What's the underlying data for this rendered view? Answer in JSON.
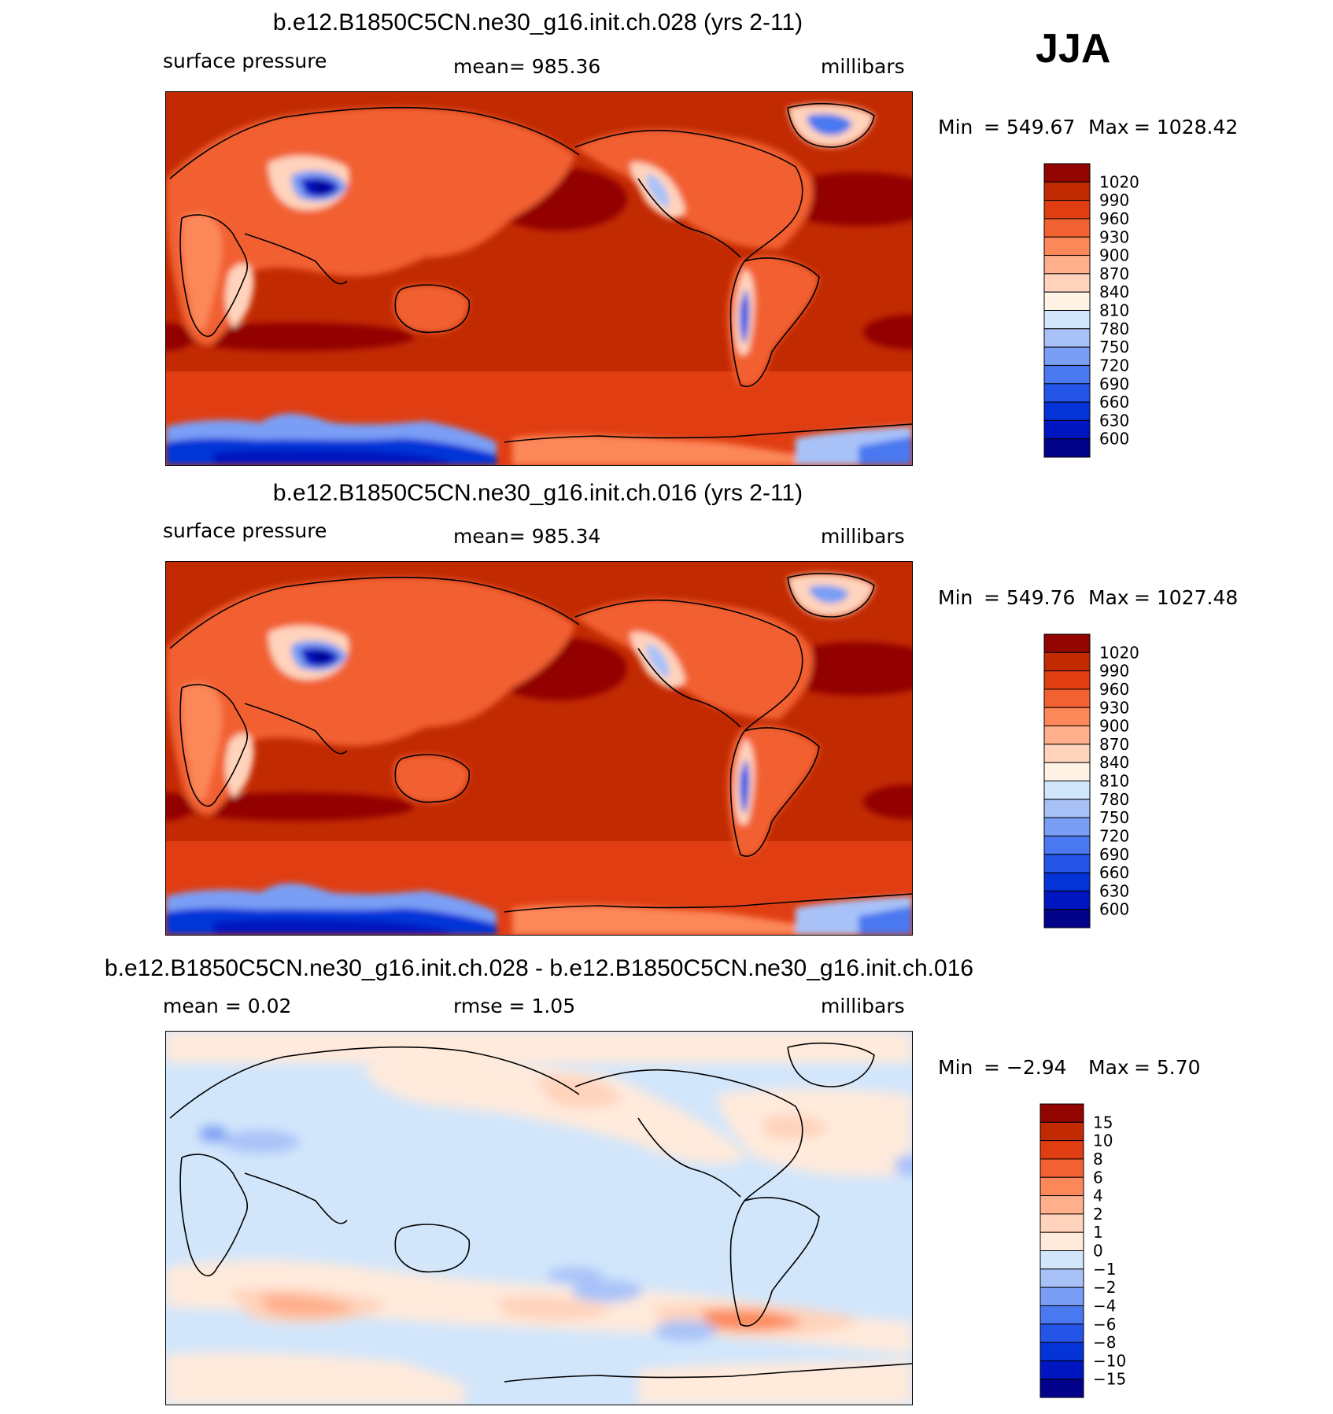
{
  "season": "JJA",
  "colors": {
    "pressure": [
      "#03028a",
      "#0016c0",
      "#0434d8",
      "#2454e8",
      "#4a78f0",
      "#7a9ef5",
      "#a8c2f8",
      "#d2e6fb",
      "#fff3e6",
      "#ffd3bc",
      "#ffaf8b",
      "#fc8759",
      "#f26131",
      "#e03e12",
      "#c22a02",
      "#920500"
    ],
    "diff": [
      "#03028a",
      "#0016c0",
      "#0434d8",
      "#2454e8",
      "#4a78f0",
      "#7a9ef5",
      "#a8c2f8",
      "#d2e6fb",
      "#ffeadb",
      "#ffd3bc",
      "#ffaf8b",
      "#fc8759",
      "#f26131",
      "#e03e12",
      "#c22a02",
      "#920500"
    ]
  },
  "panels": [
    {
      "title": "b.e12.B1850C5CN.ne30_g16.init.ch.028 (yrs 2-11)",
      "left_label": "surface pressure",
      "center_label": "mean=  985.36",
      "right_label": "millibars",
      "min_label": "Min",
      "min_value": "=  549.67",
      "max_label": "Max",
      "max_value": "=  1028.42"
    },
    {
      "title": "b.e12.B1850C5CN.ne30_g16.init.ch.016 (yrs 2-11)",
      "left_label": "surface pressure",
      "center_label": "mean=  985.34",
      "right_label": "millibars",
      "min_label": "Min",
      "min_value": "=  549.76",
      "max_label": "Max",
      "max_value": "=  1027.48"
    },
    {
      "title": "b.e12.B1850C5CN.ne30_g16.init.ch.028 - b.e12.B1850C5CN.ne30_g16.init.ch.016",
      "left_label": "mean  =     0.02",
      "center_label": "rmse  =     1.05",
      "right_label": "millibars",
      "min_label": "Min",
      "min_value": "=    −2.94",
      "max_label": "Max",
      "max_value": "=     5.70"
    }
  ],
  "chart_data": [
    {
      "type": "heatmap",
      "title": "b.e12.B1850C5CN.ne30_g16.init.ch.028 (yrs 2-11)",
      "variable": "surface pressure",
      "units": "millibars",
      "season": "JJA",
      "mean": 985.36,
      "min": 549.67,
      "max": 1028.42,
      "colorbar_levels": [
        "1020",
        "990",
        "960",
        "930",
        "900",
        "870",
        "840",
        "810",
        "780",
        "750",
        "720",
        "690",
        "660",
        "630",
        "600"
      ],
      "projection": "global cylindrical equidistant, Pacific-centered"
    },
    {
      "type": "heatmap",
      "title": "b.e12.B1850C5CN.ne30_g16.init.ch.016 (yrs 2-11)",
      "variable": "surface pressure",
      "units": "millibars",
      "season": "JJA",
      "mean": 985.34,
      "min": 549.76,
      "max": 1027.48,
      "colorbar_levels": [
        "1020",
        "990",
        "960",
        "930",
        "900",
        "870",
        "840",
        "810",
        "780",
        "750",
        "720",
        "690",
        "660",
        "630",
        "600"
      ],
      "projection": "global cylindrical equidistant, Pacific-centered"
    },
    {
      "type": "heatmap",
      "title": "b.e12.B1850C5CN.ne30_g16.init.ch.028 - b.e12.B1850C5CN.ne30_g16.init.ch.016",
      "variable": "surface pressure difference",
      "units": "millibars",
      "season": "JJA",
      "mean": 0.02,
      "rmse": 1.05,
      "min": -2.94,
      "max": 5.7,
      "colorbar_levels": [
        "15",
        "10",
        "8",
        "6",
        "4",
        "2",
        "1",
        "0",
        "−1",
        "−2",
        "−4",
        "−6",
        "−8",
        "−10",
        "−15"
      ],
      "projection": "global cylindrical equidistant, Pacific-centered"
    }
  ]
}
